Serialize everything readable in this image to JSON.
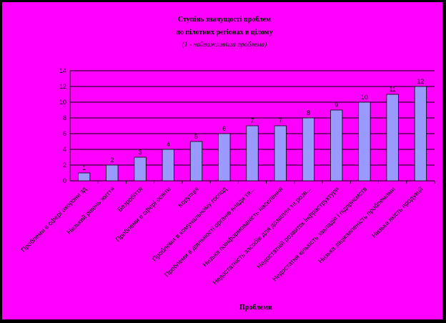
{
  "chart_data": {
    "type": "bar",
    "title_lines": [
      "Ступінь значущості проблем",
      "по пілотних регіонах в цілому"
    ],
    "subtitle": "(1 - найважливіша проблема)",
    "xlabel": "Проблеми",
    "ylabel": "",
    "ylim": [
      0,
      14
    ],
    "yticks": [
      0,
      2,
      4,
      6,
      8,
      10,
      12,
      14
    ],
    "grid": true,
    "legend": "none",
    "categories": [
      "Проблеми в сфері охорони зд",
      "Низький рівень життя",
      "Безробіття",
      "Проблеми в сфері освіти",
      "Корупція",
      "Проблеми в комунальному господ",
      "Проблеми в діяльності органів влади та...",
      "Низька поінформованість населення",
      "Недостатність засобів для дозвілля та розв...",
      "Недостатній розвиток інфраструктури",
      "Недостатня кількість закладів і підприємств",
      "Низька зацікавленість проблемами",
      "Низька якість продукції"
    ],
    "values": [
      1,
      2,
      3,
      4,
      5,
      6,
      7,
      7,
      8,
      9,
      10,
      11,
      12
    ],
    "colors": {
      "bar_fill": "#9999ff",
      "bar_stroke": "#000000",
      "plot_bg": "#ff00ff",
      "frame_bg": "#000000",
      "grid": "#000000"
    }
  }
}
